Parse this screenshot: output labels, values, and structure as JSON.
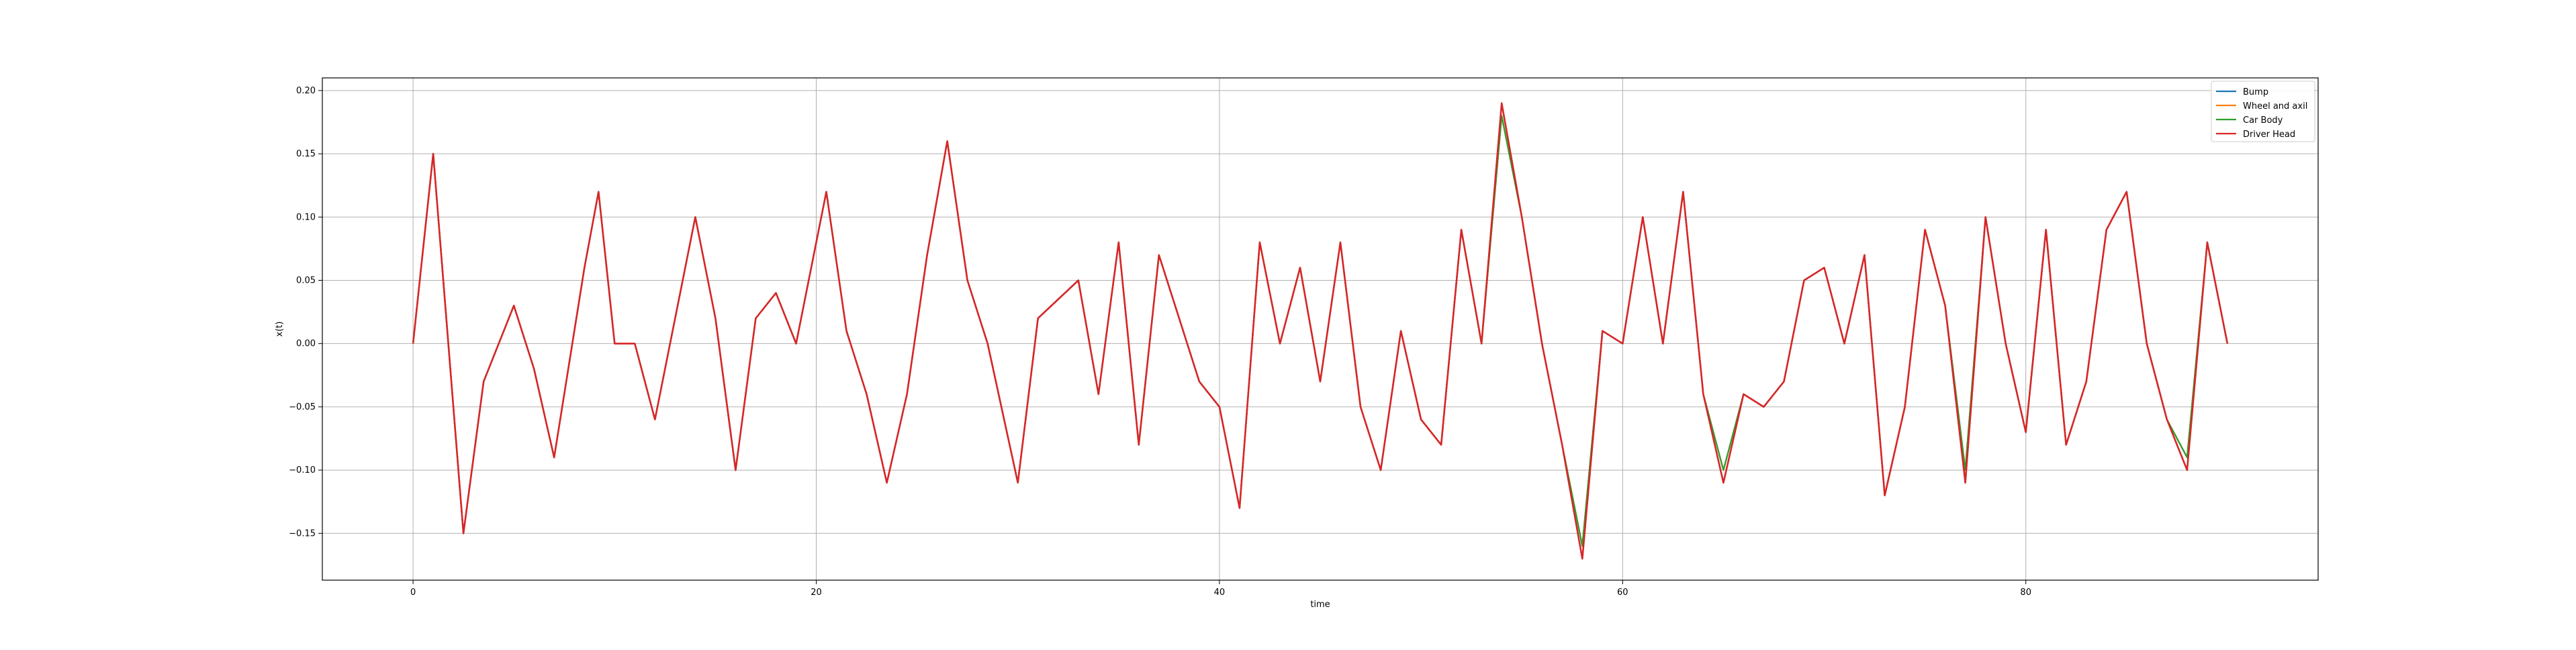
{
  "chart_data": {
    "type": "line",
    "title": "",
    "xlabel": "time",
    "ylabel": "x(t)",
    "xlim": [
      -4.5,
      94.5
    ],
    "ylim": [
      -0.187,
      0.21
    ],
    "xticks": [
      0,
      20,
      40,
      60,
      80
    ],
    "xtick_labels": [
      "0",
      "20",
      "40",
      "60",
      "80"
    ],
    "yticks": [
      -0.15,
      -0.1,
      -0.05,
      0.0,
      0.05,
      0.1,
      0.15,
      0.2
    ],
    "ytick_labels": [
      "−0.15",
      "−0.10",
      "−0.05",
      "0.00",
      "0.05",
      "0.10",
      "0.15",
      "0.20"
    ],
    "grid": true,
    "legend_position": "top-right",
    "colors": {
      "bump": "#1f77b4",
      "wheel": "#ff7f0e",
      "body": "#2ca02c",
      "head": "#d62728",
      "axes": "#000000",
      "grid": "#b0b0b0"
    },
    "x": [
      0,
      1,
      2.5,
      3.5,
      5,
      6,
      7,
      8.5,
      9.2,
      10,
      11,
      12,
      14,
      15,
      16,
      17,
      18,
      19,
      20.5,
      21.5,
      22.5,
      23.5,
      24.5,
      25.5,
      26.5,
      27.5,
      28.5,
      30,
      31,
      33,
      34,
      35,
      36,
      37,
      38,
      39,
      40,
      41,
      42,
      43,
      44,
      45,
      46,
      47,
      48,
      49,
      50,
      51,
      52,
      53,
      54,
      55,
      56,
      57,
      58,
      59,
      60,
      61,
      62,
      63,
      64,
      65,
      66,
      67,
      68,
      69,
      70,
      71,
      72,
      73,
      74,
      75,
      76,
      77,
      78,
      79,
      80,
      81,
      82,
      83,
      84,
      85,
      86,
      87,
      88,
      89,
      90
    ],
    "series": [
      {
        "name": "Bump",
        "values": [
          0.0,
          0.15,
          -0.15,
          -0.03,
          0.03,
          -0.02,
          -0.09,
          0.06,
          0.12,
          0.0,
          0.0,
          -0.06,
          0.1,
          0.02,
          -0.1,
          0.02,
          0.04,
          0.0,
          0.12,
          0.01,
          -0.04,
          -0.11,
          -0.04,
          0.07,
          0.16,
          0.05,
          0.0,
          -0.11,
          0.02,
          0.05,
          -0.04,
          0.08,
          -0.08,
          0.07,
          0.02,
          -0.03,
          -0.05,
          -0.13,
          0.08,
          0.0,
          0.06,
          -0.03,
          0.08,
          -0.05,
          -0.1,
          0.01,
          -0.06,
          -0.08,
          0.09,
          0.0,
          0.18,
          0.1,
          0.0,
          -0.08,
          -0.16,
          0.01,
          0.0,
          0.1,
          0.0,
          0.12,
          -0.04,
          -0.1,
          -0.04,
          -0.05,
          -0.03,
          0.05,
          0.06,
          0.0,
          0.07,
          -0.12,
          -0.05,
          0.09,
          0.03,
          -0.1,
          0.1,
          0.0,
          -0.07,
          0.09,
          -0.08,
          -0.03,
          0.09,
          0.12,
          0.0,
          -0.06,
          -0.09,
          0.08,
          0.0
        ]
      },
      {
        "name": "Wheel and axil",
        "values": [
          0.0,
          0.15,
          -0.15,
          -0.03,
          0.03,
          -0.02,
          -0.09,
          0.06,
          0.12,
          0.0,
          0.0,
          -0.06,
          0.1,
          0.02,
          -0.1,
          0.02,
          0.04,
          0.0,
          0.12,
          0.01,
          -0.04,
          -0.11,
          -0.04,
          0.07,
          0.16,
          0.05,
          0.0,
          -0.11,
          0.02,
          0.05,
          -0.04,
          0.08,
          -0.08,
          0.07,
          0.02,
          -0.03,
          -0.05,
          -0.13,
          0.08,
          0.0,
          0.06,
          -0.03,
          0.08,
          -0.05,
          -0.1,
          0.01,
          -0.06,
          -0.08,
          0.09,
          0.0,
          0.18,
          0.1,
          0.0,
          -0.08,
          -0.16,
          0.01,
          0.0,
          0.1,
          0.0,
          0.12,
          -0.04,
          -0.1,
          -0.04,
          -0.05,
          -0.03,
          0.05,
          0.06,
          0.0,
          0.07,
          -0.12,
          -0.05,
          0.09,
          0.03,
          -0.1,
          0.1,
          0.0,
          -0.07,
          0.09,
          -0.08,
          -0.03,
          0.09,
          0.12,
          0.0,
          -0.06,
          -0.09,
          0.08,
          0.0
        ]
      },
      {
        "name": "Car Body",
        "values": [
          0.0,
          0.15,
          -0.15,
          -0.03,
          0.03,
          -0.02,
          -0.09,
          0.06,
          0.12,
          0.0,
          0.0,
          -0.06,
          0.1,
          0.02,
          -0.1,
          0.02,
          0.04,
          0.0,
          0.12,
          0.01,
          -0.04,
          -0.11,
          -0.04,
          0.07,
          0.16,
          0.05,
          0.0,
          -0.11,
          0.02,
          0.05,
          -0.04,
          0.08,
          -0.08,
          0.07,
          0.02,
          -0.03,
          -0.05,
          -0.13,
          0.08,
          0.0,
          0.06,
          -0.03,
          0.08,
          -0.05,
          -0.1,
          0.01,
          -0.06,
          -0.08,
          0.09,
          0.0,
          0.18,
          0.1,
          0.0,
          -0.08,
          -0.16,
          0.01,
          0.0,
          0.1,
          0.0,
          0.12,
          -0.04,
          -0.1,
          -0.04,
          -0.05,
          -0.03,
          0.05,
          0.06,
          0.0,
          0.07,
          -0.12,
          -0.05,
          0.09,
          0.03,
          -0.1,
          0.1,
          0.0,
          -0.07,
          0.09,
          -0.08,
          -0.03,
          0.09,
          0.12,
          0.0,
          -0.06,
          -0.09,
          0.08,
          0.0
        ]
      },
      {
        "name": "Driver Head",
        "values": [
          0.0,
          0.15,
          -0.15,
          -0.03,
          0.03,
          -0.02,
          -0.09,
          0.06,
          0.12,
          0.0,
          0.0,
          -0.06,
          0.1,
          0.02,
          -0.1,
          0.02,
          0.04,
          0.0,
          0.12,
          0.01,
          -0.04,
          -0.11,
          -0.04,
          0.07,
          0.16,
          0.05,
          0.0,
          -0.11,
          0.02,
          0.05,
          -0.04,
          0.08,
          -0.08,
          0.07,
          0.02,
          -0.03,
          -0.05,
          -0.13,
          0.08,
          0.0,
          0.06,
          -0.03,
          0.08,
          -0.05,
          -0.1,
          0.01,
          -0.06,
          -0.08,
          0.09,
          0.0,
          0.19,
          0.1,
          0.0,
          -0.08,
          -0.17,
          0.01,
          0.0,
          0.1,
          0.0,
          0.12,
          -0.04,
          -0.11,
          -0.04,
          -0.05,
          -0.03,
          0.05,
          0.06,
          0.0,
          0.07,
          -0.12,
          -0.05,
          0.09,
          0.03,
          -0.11,
          0.1,
          0.0,
          -0.07,
          0.09,
          -0.08,
          -0.03,
          0.09,
          0.12,
          0.0,
          -0.06,
          -0.1,
          0.08,
          0.0
        ]
      }
    ]
  }
}
